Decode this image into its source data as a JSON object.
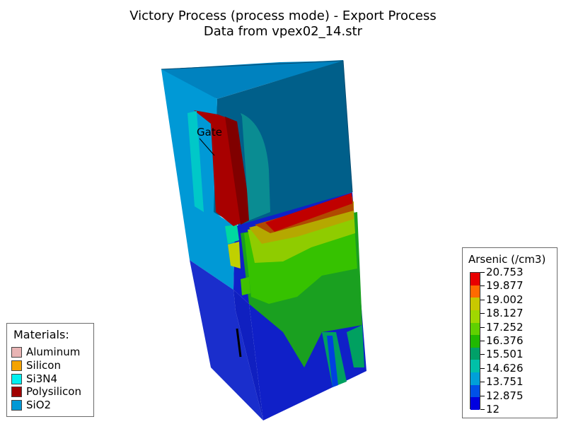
{
  "title": {
    "line1": "Victory Process  (process mode) - Export Process",
    "line2": "Data from vpex02_14.str"
  },
  "structure": {
    "gate_label": "Gate"
  },
  "materials_legend": {
    "header": "Materials:",
    "items": [
      {
        "label": "Aluminum",
        "color": "#e8b4b4"
      },
      {
        "label": "Silicon",
        "color": "#f5a300"
      },
      {
        "label": "Si3N4",
        "color": "#00f0f0"
      },
      {
        "label": "Polysilicon",
        "color": "#a00000"
      },
      {
        "label": "SiO2",
        "color": "#0099d6"
      }
    ]
  },
  "colorbar": {
    "header": "Arsenic (/cm3)",
    "levels": [
      "20.753",
      "19.877",
      "19.002",
      "18.127",
      "17.252",
      "16.376",
      "15.501",
      "14.626",
      "13.751",
      "12.875",
      "12"
    ],
    "colors": [
      "#e80000",
      "#ff6a00",
      "#c8c800",
      "#a0d800",
      "#60d000",
      "#20b800",
      "#00a068",
      "#00c0a8",
      "#00a0d8",
      "#0050e8",
      "#0000e0"
    ]
  }
}
